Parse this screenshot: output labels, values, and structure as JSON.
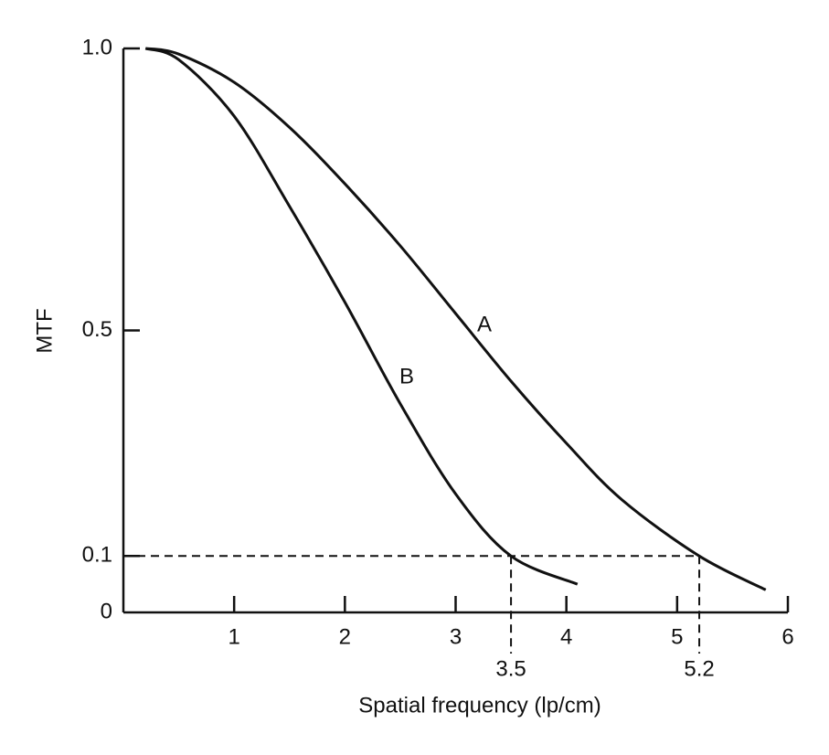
{
  "chart_data": {
    "type": "line",
    "xlabel": "Spatial frequency (lp/cm)",
    "ylabel": "MTF",
    "xlim": [
      0,
      6
    ],
    "ylim": [
      0,
      1
    ],
    "xticks": [
      1,
      2,
      3,
      4,
      5,
      6
    ],
    "yticks": [
      0,
      0.1,
      0.5,
      {
        "value": 1,
        "label": "1.0"
      }
    ],
    "color": "#111111",
    "series": [
      {
        "name": "A",
        "x": [
          0.2,
          0.5,
          1,
          1.5,
          2,
          2.5,
          3,
          3.5,
          4,
          4.5,
          5.2,
          5.8
        ],
        "values": [
          1.0,
          0.99,
          0.94,
          0.86,
          0.76,
          0.65,
          0.53,
          0.41,
          0.3,
          0.2,
          0.1,
          0.04
        ]
      },
      {
        "name": "B",
        "x": [
          0.2,
          0.5,
          1,
          1.5,
          2,
          2.5,
          3,
          3.5,
          4.1
        ],
        "values": [
          1.0,
          0.98,
          0.88,
          0.72,
          0.55,
          0.37,
          0.21,
          0.1,
          0.05
        ]
      }
    ],
    "reference_y": 0.1,
    "reference_x": [
      3.5,
      5.2
    ]
  }
}
